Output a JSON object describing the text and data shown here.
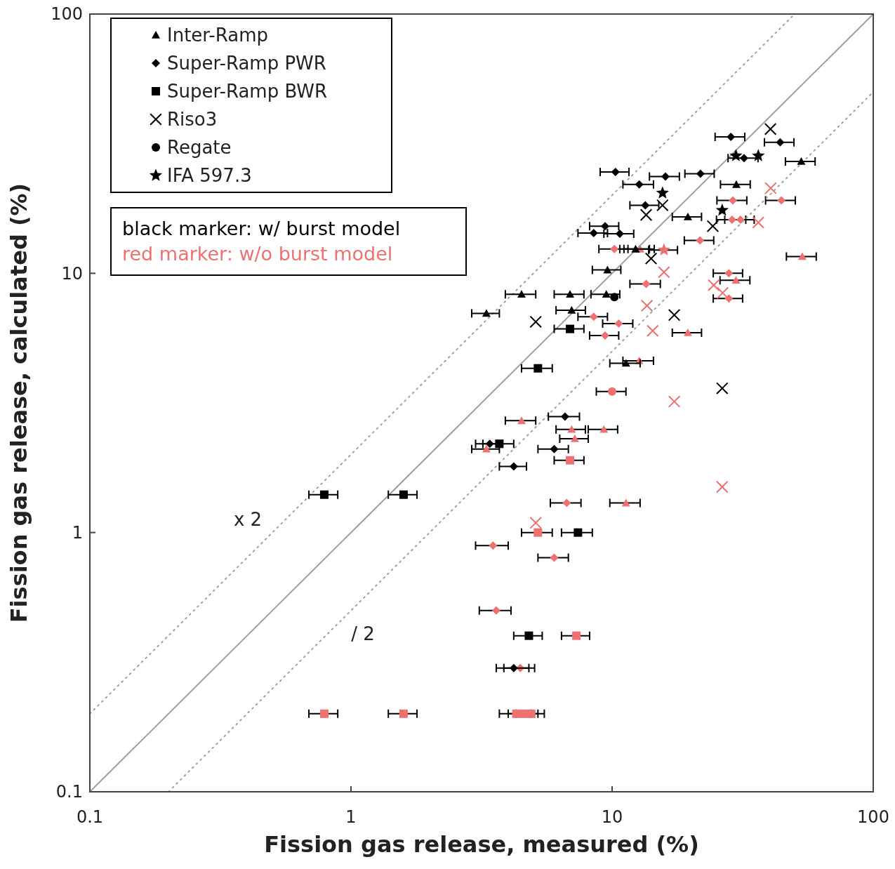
{
  "chart_data": {
    "type": "scatter",
    "xlabel": "Fission gas release, measured (%)",
    "ylabel": "Fission gas release, calculated (%)",
    "log": "xy",
    "xlim": [
      0.1,
      100
    ],
    "ylim": [
      0.1,
      100
    ],
    "xticks": [
      0.1,
      1,
      10,
      100
    ],
    "yticks": [
      0.1,
      1,
      10,
      100
    ],
    "grid": false,
    "legend": "top left",
    "annotations": [
      "black marker: w/ burst model",
      "red marker: w/o burst model"
    ],
    "series": [
      {
        "type": "line",
        "color": "#a0a0a0",
        "line_style": "solid",
        "marker": "none",
        "x": [
          0.1,
          100
        ],
        "values": [
          0.1,
          100
        ]
      },
      {
        "type": "line",
        "name": "x 2",
        "color": "#a0a0a0",
        "line_style": "dotted",
        "marker": "none",
        "x": [
          0.1,
          50
        ],
        "values": [
          0.2,
          100
        ]
      },
      {
        "type": "line",
        "name": "/ 2",
        "color": "#a0a0a0",
        "line_style": "dotted",
        "marker": "none",
        "x": [
          0.2,
          100
        ],
        "values": [
          0.1,
          50
        ]
      },
      {
        "name": "Inter-Ramp",
        "color": "#000000",
        "marker": "triangle",
        "x": [
          3.3,
          4.5,
          6.9,
          7.0,
          9.5,
          9.6,
          11.3,
          19.5,
          29.9,
          53,
          12.3
        ],
        "values": [
          7.0,
          8.3,
          8.3,
          7.2,
          8.3,
          10.3,
          4.5,
          16.5,
          22,
          27,
          12.4
        ],
        "xerrors": [
          0.4,
          0.6,
          0.9,
          0.9,
          1.2,
          1.2,
          1.5,
          2.5,
          3.9,
          6.9,
          1.6
        ]
      },
      {
        "name": "Super-Ramp PWR",
        "color": "#000000",
        "marker": "diamond",
        "x": [
          10.3,
          12.7,
          8.5,
          9.4,
          10.7,
          28.5,
          44,
          32,
          16,
          21.8,
          13.4,
          6.6,
          3.4,
          6.0,
          4.2,
          4.2
        ],
        "values": [
          24.6,
          22,
          14.3,
          15.2,
          14.2,
          33.6,
          32,
          27.8,
          23.6,
          24.2,
          18.3,
          2.8,
          2.2,
          2.1,
          1.8,
          0.3
        ],
        "xerrors": [
          1.3,
          1.7,
          1.1,
          1.2,
          1.4,
          3.7,
          5.7,
          4.2,
          2.1,
          2.8,
          1.7,
          0.9,
          0.4,
          0.8,
          0.5,
          0.6
        ]
      },
      {
        "name": "Super-Ramp BWR",
        "color": "#000000",
        "marker": "square",
        "x": [
          0.79,
          1.59,
          6.9,
          5.2,
          3.7,
          7.4,
          4.8
        ],
        "values": [
          1.4,
          1.4,
          6.1,
          4.3,
          2.2,
          1.0,
          0.4
        ],
        "xerrors": [
          0.1,
          0.2,
          0.9,
          0.7,
          0.5,
          1.0,
          0.6
        ]
      },
      {
        "name": "Riso3",
        "color": "#000000",
        "marker": "cross",
        "x": [
          5.1,
          17.3,
          26.4,
          14.1,
          13.5,
          24.3,
          40.4,
          15.6
        ],
        "values": [
          6.5,
          6.9,
          3.6,
          11.4,
          16.8,
          15.2,
          36,
          18.3
        ]
      },
      {
        "name": "Regate",
        "color": "#000000",
        "marker": "circle",
        "x": [
          10.2
        ],
        "values": [
          8.1
        ]
      },
      {
        "name": "IFA 597.3",
        "color": "#000000",
        "marker": "star",
        "x": [
          15.6,
          26.4,
          29.8,
          36.3
        ],
        "values": [
          20.4,
          17.5,
          28.4,
          28.4
        ]
      },
      {
        "color": "#f07070",
        "marker": "triangle",
        "x": [
          12.7,
          11.3,
          4.5,
          7.0,
          7.2,
          3.3,
          19.5,
          53.5,
          29.8,
          9.3,
          12.8
        ],
        "values": [
          4.6,
          1.3,
          2.7,
          2.5,
          2.3,
          2.1,
          5.9,
          11.6,
          9.4,
          2.5,
          12.4
        ],
        "xerrors": [
          1.7,
          1.5,
          0.6,
          0.9,
          0.9,
          0.4,
          2.5,
          7,
          3.9,
          1.2,
          1.7
        ]
      },
      {
        "color": "#f07070",
        "marker": "square",
        "x": [
          6.9,
          5.2,
          7.3,
          0.79,
          1.59,
          4.3,
          4.6,
          4.9
        ],
        "values": [
          1.9,
          1.0,
          0.4,
          0.2,
          0.2,
          0.2,
          0.2,
          0.2
        ],
        "xerrors": [
          0.9,
          0.7,
          0.9,
          0.1,
          0.2,
          0.6,
          0.6,
          0.6
        ]
      },
      {
        "color": "#f07070",
        "marker": "diamond",
        "x": [
          6.7,
          3.5,
          6.0,
          3.6,
          13.5,
          8.5,
          10.6,
          9.4,
          28,
          28,
          29,
          44.5,
          31,
          28.8,
          21.7,
          10.2,
          4.45
        ],
        "values": [
          1.3,
          0.89,
          0.8,
          0.5,
          9.1,
          6.8,
          6.4,
          5.75,
          8.0,
          10,
          19.1,
          19.1,
          16.1,
          16.1,
          13.4,
          12.4,
          0.3
        ],
        "xerrors": [
          0.9,
          0.5,
          0.8,
          0.5,
          1.8,
          1.1,
          1.4,
          1.2,
          3.6,
          3.6,
          3.8,
          5.8,
          4.0,
          3.7,
          2.8,
          1.3,
          0.6
        ]
      },
      {
        "color": "#f07070",
        "marker": "cross",
        "x": [
          15.8,
          13.6,
          14.3,
          17.3,
          26.4,
          5.1,
          40.5,
          36.3,
          24.5,
          26.5
        ],
        "values": [
          10.1,
          7.5,
          6.0,
          3.2,
          1.5,
          1.09,
          21.3,
          15.7,
          9.0,
          8.4
        ]
      },
      {
        "color": "#f07070",
        "marker": "star",
        "x": [
          15.8
        ],
        "values": [
          12.3
        ],
        "xerrors": [
          2.0
        ]
      },
      {
        "color": "#f07070",
        "marker": "circle",
        "x": [
          10
        ],
        "values": [
          3.5
        ],
        "xerrors": [
          1.3
        ]
      }
    ]
  }
}
